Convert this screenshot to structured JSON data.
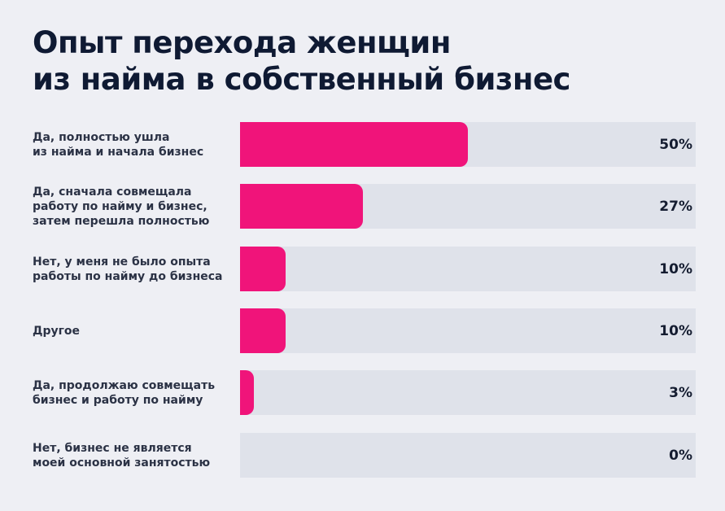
{
  "title": {
    "line1": "Опыт перехода женщин",
    "line2": "из найма в собственный бизнес"
  },
  "colors": {
    "bar": "#f0147a",
    "track": "#dfe2ea",
    "background": "#eeeff4",
    "text": "#0f1a33"
  },
  "rows": [
    {
      "label": "Да, полностью ушла\nиз найма и начала бизнес",
      "value": 50,
      "value_label": "50%"
    },
    {
      "label": "Да, сначала совмещала\nработу по найму и бизнес,\nзатем перешла полностью",
      "value": 27,
      "value_label": "27%"
    },
    {
      "label": "Нет, у меня не было опыта\nработы по найму до бизнеса",
      "value": 10,
      "value_label": "10%"
    },
    {
      "label": "Другое",
      "value": 10,
      "value_label": "10%"
    },
    {
      "label": "Да, продолжаю совмещать\nбизнес и работу по найму",
      "value": 3,
      "value_label": "3%"
    },
    {
      "label": "Нет, бизнес не является\nмоей основной занятостью",
      "value": 0,
      "value_label": "0%"
    }
  ],
  "chart_data": {
    "type": "bar",
    "orientation": "horizontal",
    "title": "Опыт перехода женщин из найма в собственный бизнес",
    "categories": [
      "Да, полностью ушла из найма и начала бизнес",
      "Да, сначала совмещала работу по найму и бизнес, затем перешла полностью",
      "Нет, у меня не было опыта работы по найму до бизнеса",
      "Другое",
      "Да, продолжаю совмещать бизнес и работу по найму",
      "Нет, бизнес не является моей основной занятостью"
    ],
    "values": [
      50,
      27,
      10,
      10,
      3,
      0
    ],
    "unit": "%",
    "xlabel": "",
    "ylabel": "",
    "xlim": [
      0,
      100
    ],
    "grid": false,
    "legend": null,
    "data_labels": true
  }
}
